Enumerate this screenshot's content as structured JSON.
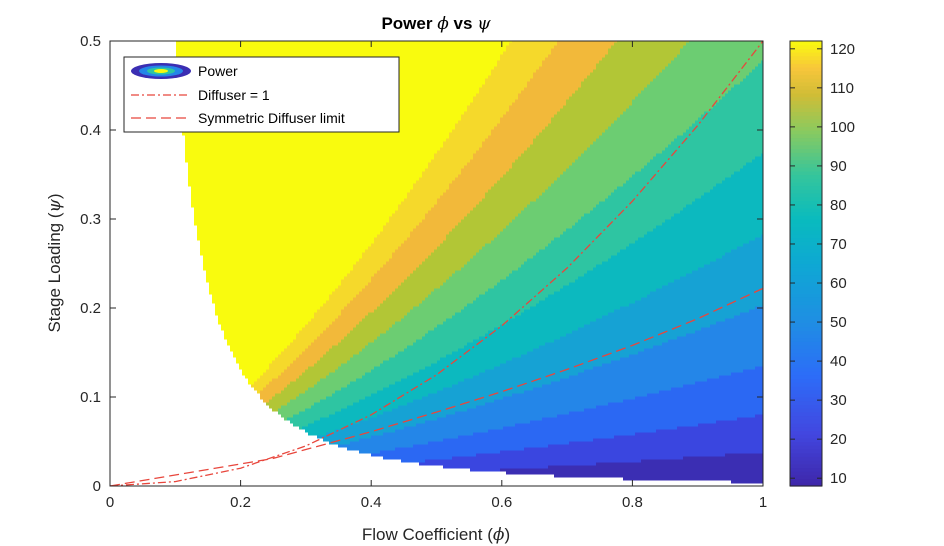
{
  "chart_data": {
    "type": "heatmap",
    "subtype": "filled-contour",
    "title_text": "Power",
    "title_greek": [
      "ϕ",
      "vs",
      "ψ"
    ],
    "xlabel_text": "Flow Coefficient (",
    "xlabel_symbol": "ϕ",
    "xlabel_close": ")",
    "ylabel_text": "Stage Loading (",
    "ylabel_symbol": "ψ",
    "ylabel_close": ")",
    "xlim": [
      0,
      1
    ],
    "ylim": [
      0,
      0.5
    ],
    "xticks": [
      0,
      0.2,
      0.4,
      0.6,
      0.8,
      1
    ],
    "xtick_labels": [
      "0",
      "0.2",
      "0.4",
      "0.6",
      "0.8",
      "1"
    ],
    "yticks": [
      0,
      0.1,
      0.2,
      0.3,
      0.4,
      0.5
    ],
    "ytick_labels": [
      "0",
      "0.1",
      "0.2",
      "0.3",
      "0.4",
      "0.5"
    ],
    "grid": false,
    "legend_position": "top-left",
    "legend": [
      {
        "label": "Power",
        "style": "contour-patch"
      },
      {
        "label": "Diffuser = 1",
        "style": "dash-dot",
        "color": "#e8463c"
      },
      {
        "label": "Symmetric Diffuser limit",
        "style": "dashed",
        "color": "#e8463c"
      }
    ],
    "colorbar": {
      "range": [
        8,
        122
      ],
      "ticks": [
        10,
        20,
        30,
        40,
        50,
        60,
        70,
        80,
        90,
        100,
        110,
        120
      ],
      "tick_labels": [
        "10",
        "20",
        "30",
        "40",
        "50",
        "60",
        "70",
        "80",
        "90",
        "100",
        "110",
        "120"
      ],
      "colormap": "parula"
    },
    "contour_levels": [
      10,
      20,
      30,
      40,
      50,
      60,
      70,
      80,
      90,
      100,
      110,
      120
    ],
    "contour_level_colors": [
      "#3b2eb3",
      "#3a46e0",
      "#2b68f3",
      "#2486e8",
      "#16a2d4",
      "#0cb9bf",
      "#2ec5a2",
      "#6ccd72",
      "#b2c636",
      "#f2b93a",
      "#f5d92b",
      "#f9fb0e"
    ],
    "lines": [
      {
        "name": "Diffuser = 1",
        "style": "dash-dot",
        "color": "#e8463c",
        "x": [
          0,
          0.1,
          0.2,
          0.3,
          0.4,
          0.5,
          0.6,
          0.7,
          0.8,
          0.9,
          1.0
        ],
        "y": [
          0,
          0.005,
          0.02,
          0.045,
          0.08,
          0.125,
          0.18,
          0.245,
          0.32,
          0.405,
          0.5
        ]
      },
      {
        "name": "Symmetric Diffuser limit",
        "style": "dashed",
        "color": "#e8463c",
        "x": [
          0,
          0.25,
          0.4,
          0.5,
          0.6,
          0.7,
          0.8,
          0.9,
          1.0
        ],
        "y": [
          0,
          0.031,
          0.061,
          0.083,
          0.106,
          0.131,
          0.158,
          0.188,
          0.222
        ]
      }
    ]
  }
}
